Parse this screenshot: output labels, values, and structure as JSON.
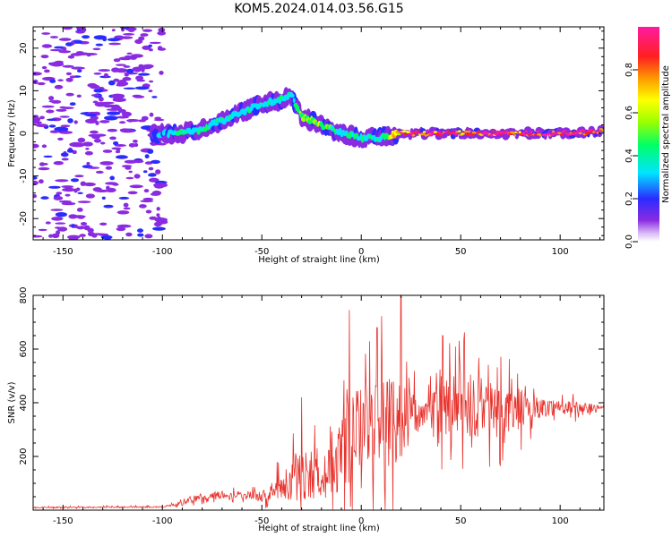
{
  "figure_title": "KOM5.2024.014.03.56.G15",
  "chart_data": [
    {
      "type": "heatmap",
      "title": "KOM5.2024.014.03.56.G15",
      "xlabel": "Height of straight line (km)",
      "ylabel": "Frequency (Hz)",
      "xlim": [
        -165,
        122
      ],
      "ylim": [
        -25,
        25
      ],
      "xticks": [
        -150,
        -100,
        -50,
        0,
        50,
        100
      ],
      "yticks": [
        -20,
        -10,
        0,
        10,
        20
      ],
      "colorbar": {
        "label": "Normalized spectral amplitude",
        "range": [
          0,
          1
        ],
        "ticks": [
          "0.0",
          "0.2",
          "0.4",
          "0.6",
          "0.8"
        ],
        "colormap": "hsv-rainbow (white → violet → blue → cyan → green → yellow → red → magenta)"
      },
      "ridge": {
        "x": [
          -100,
          -90,
          -80,
          -70,
          -60,
          -50,
          -40,
          -35,
          -30,
          -20,
          -10,
          0,
          10,
          20,
          40,
          60,
          80,
          100,
          120
        ],
        "freq": [
          0,
          0,
          1,
          3,
          5,
          7,
          8,
          9,
          4,
          2,
          0,
          -1,
          -1,
          0,
          0,
          0,
          0,
          0,
          0.5
        ],
        "amplitude": [
          0.25,
          0.3,
          0.35,
          0.3,
          0.3,
          0.28,
          0.3,
          0.3,
          0.45,
          0.5,
          0.3,
          0.3,
          0.3,
          0.85,
          0.9,
          0.85,
          0.85,
          0.9,
          0.9
        ]
      }
    },
    {
      "type": "line",
      "xlabel": "Height of straight line (km)",
      "ylabel": "SNR (v/v)",
      "xlim": [
        -165,
        122
      ],
      "ylim": [
        0,
        800
      ],
      "xticks": [
        -150,
        -100,
        -50,
        0,
        50,
        100
      ],
      "yticks": [
        200,
        400,
        600,
        800
      ],
      "series_color": "#e8322c",
      "envelope": {
        "x": [
          -165,
          -100,
          -90,
          -80,
          -65,
          -50,
          -40,
          -30,
          -20,
          -10,
          0,
          10,
          20,
          30,
          40,
          50,
          60,
          70,
          80,
          90,
          100,
          110,
          122
        ],
        "mean": [
          10,
          12,
          25,
          50,
          60,
          50,
          90,
          130,
          140,
          200,
          320,
          350,
          350,
          360,
          370,
          390,
          380,
          370,
          375,
          380,
          385,
          380,
          380
        ],
        "amp": [
          5,
          6,
          20,
          30,
          30,
          40,
          120,
          220,
          230,
          320,
          350,
          380,
          400,
          60,
          250,
          300,
          260,
          220,
          160,
          80,
          60,
          50,
          25
        ]
      },
      "peaks": [
        {
          "x": -30,
          "y": 420
        },
        {
          "x": -6,
          "y": 745
        },
        {
          "x": 20,
          "y": 800
        },
        {
          "x": 8,
          "y": 680
        },
        {
          "x": 41,
          "y": 650
        }
      ]
    }
  ]
}
